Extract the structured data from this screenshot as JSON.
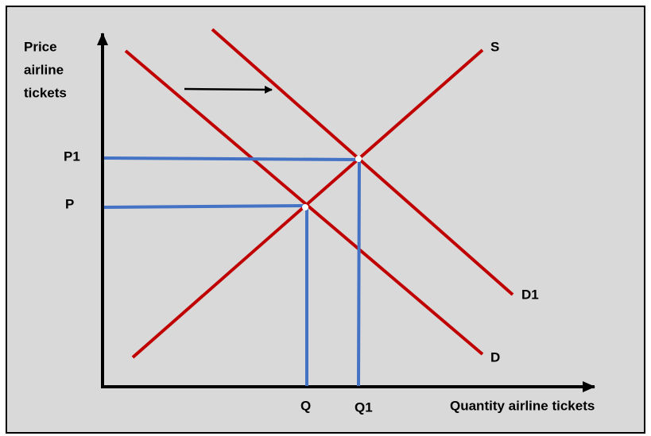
{
  "axes": {
    "y_label": [
      "Price",
      "airline",
      "tickets"
    ],
    "x_label": "Quantity airline tickets"
  },
  "curves": {
    "supply": "S",
    "demand": "D",
    "new_demand": "D1"
  },
  "price_levels": [
    "P1",
    "P"
  ],
  "quantity_levels": [
    "Q",
    "Q1"
  ]
}
